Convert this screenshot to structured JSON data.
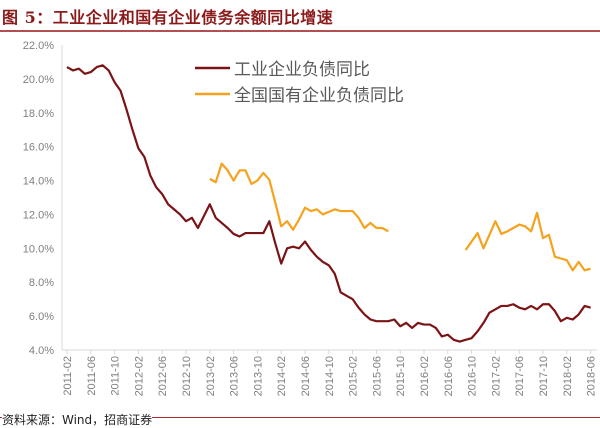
{
  "title": "图 5：工业企业和国有企业债务余额同比增速",
  "source": "资料来源：Wind，招商证券",
  "chart_data": {
    "type": "line",
    "title": "图 5：工业企业和国有企业债务余额同比增速",
    "xlabel": "",
    "ylabel": "",
    "x_start": "2011-02",
    "x_end": "2018-06",
    "x_frequency": "monthly",
    "x_tick_labels": [
      "2011-02",
      "2011-06",
      "2011-10",
      "2012-02",
      "2012-06",
      "2012-10",
      "2013-02",
      "2013-06",
      "2013-10",
      "2014-02",
      "2014-06",
      "2014-10",
      "2015-02",
      "2015-06",
      "2015-10",
      "2016-02",
      "2016-06",
      "2016-10",
      "2017-02",
      "2017-06",
      "2017-10",
      "2018-02",
      "2018-06"
    ],
    "y_tick_labels": [
      "4.0%",
      "6.0%",
      "8.0%",
      "10.0%",
      "12.0%",
      "14.0%",
      "16.0%",
      "18.0%",
      "20.0%",
      "22.0%"
    ],
    "ylim": [
      4,
      22
    ],
    "y_unit": "%",
    "grid": false,
    "legend_position": "top-center",
    "series": [
      {
        "name": "工业企业负债同比",
        "color": "#7b1416",
        "values": [
          20.7,
          20.5,
          20.6,
          20.3,
          20.4,
          20.7,
          20.8,
          20.5,
          19.8,
          19.3,
          18.2,
          17.0,
          15.9,
          15.4,
          14.3,
          13.6,
          13.2,
          12.6,
          12.3,
          12.0,
          11.6,
          11.8,
          11.2,
          11.9,
          12.6,
          11.8,
          11.5,
          11.2,
          10.85,
          10.7,
          10.9,
          10.9,
          10.9,
          10.9,
          11.6,
          10.3,
          9.1,
          10.0,
          10.1,
          10.0,
          10.4,
          9.9,
          9.5,
          9.2,
          9.0,
          8.5,
          7.4,
          7.2,
          7.0,
          6.5,
          6.1,
          5.8,
          5.7,
          5.7,
          5.7,
          5.8,
          5.4,
          5.6,
          5.3,
          5.6,
          5.5,
          5.5,
          5.3,
          4.8,
          4.9,
          4.6,
          4.5,
          4.6,
          4.7,
          5.1,
          5.6,
          6.2,
          6.4,
          6.6,
          6.6,
          6.7,
          6.5,
          6.4,
          6.6,
          6.4,
          6.7,
          6.7,
          6.3,
          5.7,
          5.9,
          5.8,
          6.1,
          6.6,
          6.5
        ]
      },
      {
        "name": "全国国有企业负债同比",
        "color": "#f5a21f",
        "values": [
          null,
          null,
          null,
          null,
          null,
          null,
          null,
          null,
          null,
          null,
          null,
          null,
          null,
          null,
          null,
          null,
          null,
          null,
          null,
          null,
          null,
          null,
          null,
          null,
          14.1,
          13.9,
          15.0,
          14.6,
          14.0,
          14.6,
          14.6,
          13.8,
          14.0,
          14.45,
          14.05,
          12.7,
          11.3,
          11.6,
          11.1,
          11.7,
          12.4,
          12.2,
          12.3,
          12.0,
          12.15,
          12.3,
          12.2,
          12.2,
          12.2,
          11.8,
          11.2,
          11.5,
          11.2,
          11.2,
          11.0,
          null,
          null,
          null,
          null,
          null,
          null,
          null,
          null,
          null,
          null,
          null,
          null,
          9.9,
          10.4,
          10.9,
          10.0,
          10.8,
          11.6,
          10.85,
          11.0,
          11.2,
          11.4,
          11.3,
          11.0,
          12.1,
          10.6,
          10.8,
          9.5,
          9.4,
          9.3,
          8.7,
          9.2,
          8.7,
          8.8
        ]
      }
    ]
  }
}
